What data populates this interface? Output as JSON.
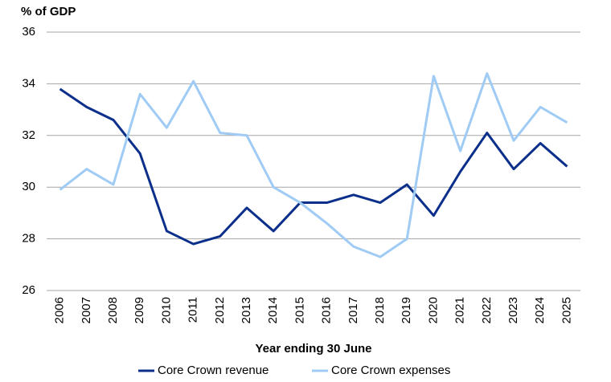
{
  "chart_data": {
    "type": "line",
    "y_label": "% of GDP",
    "x_label": "Year ending 30 June",
    "categories": [
      "2006",
      "2007",
      "2008",
      "2009",
      "2010",
      "2011",
      "2012",
      "2013",
      "2014",
      "2015",
      "2016",
      "2017",
      "2018",
      "2019",
      "2020",
      "2021",
      "2022",
      "2023",
      "2024",
      "2025"
    ],
    "series": [
      {
        "name": "Core Crown revenue",
        "color": "#0b2f8a",
        "values": [
          33.8,
          33.1,
          32.6,
          31.3,
          28.3,
          27.8,
          28.1,
          29.2,
          28.3,
          29.4,
          29.4,
          29.7,
          29.4,
          30.1,
          28.9,
          30.6,
          32.1,
          30.7,
          31.7,
          30.8
        ]
      },
      {
        "name": "Core Crown expenses",
        "color": "#9fcbf5",
        "values": [
          29.9,
          30.7,
          30.1,
          33.6,
          32.3,
          34.1,
          32.1,
          32.0,
          30.0,
          29.4,
          28.6,
          27.7,
          27.3,
          28.0,
          34.3,
          31.4,
          34.4,
          31.8,
          33.1,
          32.5
        ]
      }
    ],
    "ylim": [
      26,
      36
    ],
    "yticks": [
      26,
      28,
      30,
      32,
      34,
      36
    ],
    "grid": true,
    "legend": "bottom"
  }
}
